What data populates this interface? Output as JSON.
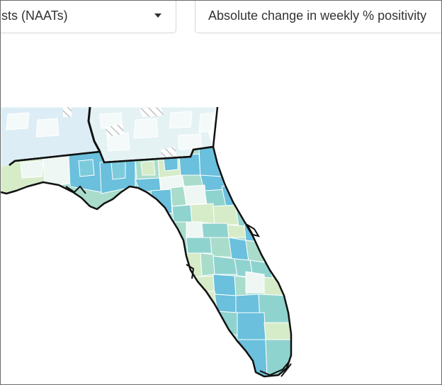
{
  "controls": {
    "test_type_select": {
      "value": "sts (NAATs)",
      "icon": "caret-down-icon"
    },
    "metric_select": {
      "value": "Absolute change in weekly % positivity"
    }
  },
  "map": {
    "region": "Florida",
    "colors": {
      "darkest_blue": "#6ac0dd",
      "mid_blue": "#8fd3cf",
      "teal_light": "#a9dccb",
      "light_green": "#d6ecc9",
      "pale": "#eef7f4",
      "neighbor_light_blue": "#d9edf5",
      "neighbor_white": "#f4fafa",
      "hatch_gray": "#bfbfbf",
      "border": "#111111"
    }
  }
}
